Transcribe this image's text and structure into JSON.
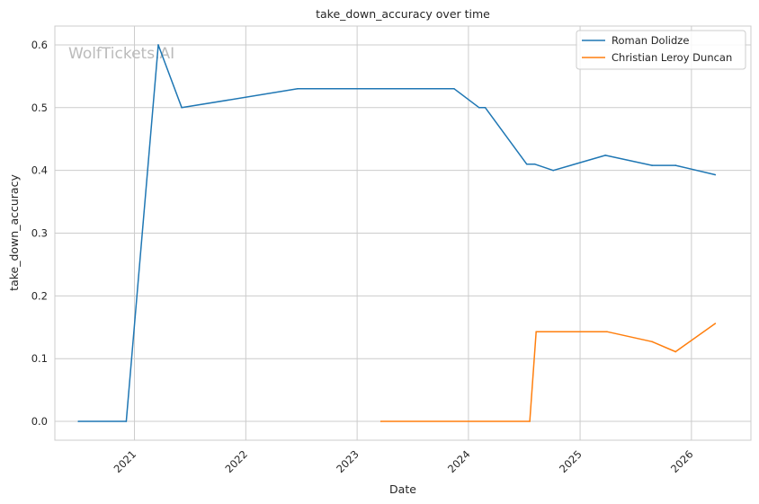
{
  "chart_data": {
    "type": "line",
    "title": "take_down_accuracy over time",
    "xlabel": "Date",
    "ylabel": "take_down_accuracy",
    "watermark": "WolfTickets.AI",
    "x_ticks": [
      "2021",
      "2022",
      "2023",
      "2024",
      "2025",
      "2026"
    ],
    "y_ticks": [
      "0.0",
      "0.1",
      "0.2",
      "0.3",
      "0.4",
      "0.5",
      "0.6"
    ],
    "xlim": [
      "2020-04-15",
      "2026-07-15"
    ],
    "ylim": [
      -0.03,
      0.63
    ],
    "grid": true,
    "legend_position": "top-right",
    "series": [
      {
        "name": "Roman Dolidze",
        "color": "#1f77b4",
        "points": [
          [
            "2020-07-01",
            0.0
          ],
          [
            "2020-12-05",
            0.0
          ],
          [
            "2021-03-20",
            0.6
          ],
          [
            "2021-06-05",
            0.5
          ],
          [
            "2022-06-20",
            0.53
          ],
          [
            "2023-11-15",
            0.53
          ],
          [
            "2024-02-05",
            0.5
          ],
          [
            "2024-02-25",
            0.5
          ],
          [
            "2024-07-10",
            0.41
          ],
          [
            "2024-08-05",
            0.41
          ],
          [
            "2024-10-05",
            0.4
          ],
          [
            "2025-03-25",
            0.424
          ],
          [
            "2025-08-25",
            0.408
          ],
          [
            "2025-11-10",
            0.408
          ],
          [
            "2026-03-20",
            0.393
          ]
        ]
      },
      {
        "name": "Christian Leroy Duncan",
        "color": "#ff7f0e",
        "points": [
          [
            "2023-03-20",
            0.0
          ],
          [
            "2024-07-20",
            0.0
          ],
          [
            "2024-08-10",
            0.143
          ],
          [
            "2025-03-30",
            0.143
          ],
          [
            "2025-08-25",
            0.127
          ],
          [
            "2025-11-10",
            0.111
          ],
          [
            "2026-03-20",
            0.156
          ]
        ]
      }
    ]
  }
}
